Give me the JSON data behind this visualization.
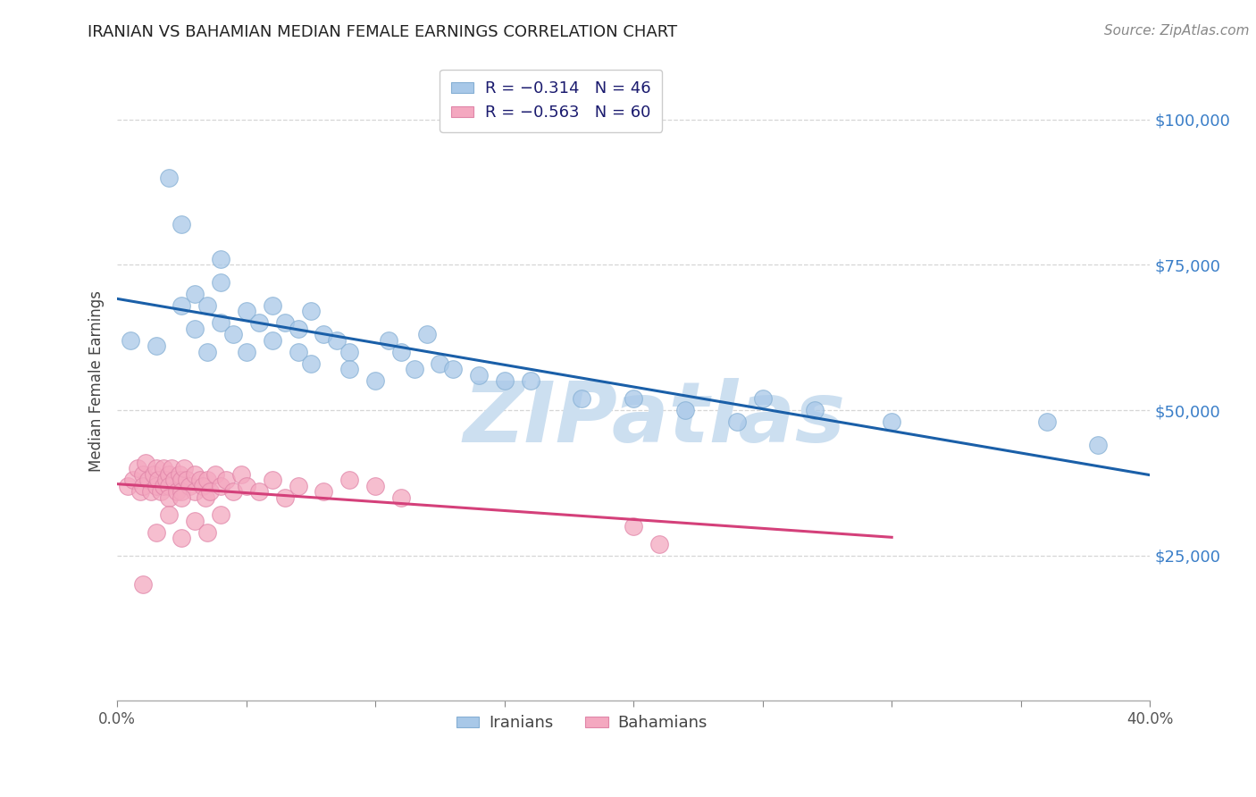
{
  "title": "IRANIAN VS BAHAMIAN MEDIAN FEMALE EARNINGS CORRELATION CHART",
  "source": "Source: ZipAtlas.com",
  "ylabel": "Median Female Earnings",
  "xlim": [
    0.0,
    0.4
  ],
  "ylim": [
    0,
    110000
  ],
  "yticks": [
    25000,
    50000,
    75000,
    100000
  ],
  "ytick_labels": [
    "$25,000",
    "$50,000",
    "$75,000",
    "$100,000"
  ],
  "xticks": [
    0.0,
    0.05,
    0.1,
    0.15,
    0.2,
    0.25,
    0.3,
    0.35,
    0.4
  ],
  "xtick_labels": [
    "0.0%",
    "",
    "",
    "",
    "",
    "",
    "",
    "",
    "40.0%"
  ],
  "background_color": "#ffffff",
  "grid_color": "#cccccc",
  "iranian_color": "#a8c8e8",
  "iranian_edge_color": "#85afd4",
  "bahamian_color": "#f4a8c0",
  "bahamian_edge_color": "#e085a8",
  "iranian_line_color": "#1a5fa8",
  "bahamian_line_color": "#d4407a",
  "watermark": "ZIPatlas",
  "watermark_color": "#ccdff0",
  "legend_iranian": "R = −0.314   N = 46",
  "legend_bahamian": "R = −0.563   N = 60",
  "legend_R_color": "#d44",
  "iranians_label": "Iranians",
  "bahamians_label": "Bahamians",
  "iranian_scatter_x": [
    0.005,
    0.015,
    0.02,
    0.025,
    0.025,
    0.03,
    0.03,
    0.035,
    0.035,
    0.04,
    0.04,
    0.04,
    0.045,
    0.05,
    0.05,
    0.055,
    0.06,
    0.06,
    0.065,
    0.07,
    0.07,
    0.075,
    0.075,
    0.08,
    0.085,
    0.09,
    0.09,
    0.1,
    0.105,
    0.11,
    0.115,
    0.12,
    0.125,
    0.13,
    0.14,
    0.15,
    0.16,
    0.18,
    0.2,
    0.22,
    0.24,
    0.25,
    0.27,
    0.3,
    0.36,
    0.38
  ],
  "iranian_scatter_y": [
    62000,
    61000,
    90000,
    68000,
    82000,
    64000,
    70000,
    60000,
    68000,
    76000,
    65000,
    72000,
    63000,
    67000,
    60000,
    65000,
    68000,
    62000,
    65000,
    64000,
    60000,
    67000,
    58000,
    63000,
    62000,
    60000,
    57000,
    55000,
    62000,
    60000,
    57000,
    63000,
    58000,
    57000,
    56000,
    55000,
    55000,
    52000,
    52000,
    50000,
    48000,
    52000,
    50000,
    48000,
    48000,
    44000
  ],
  "bahamian_scatter_x": [
    0.004,
    0.006,
    0.008,
    0.009,
    0.01,
    0.01,
    0.011,
    0.012,
    0.013,
    0.014,
    0.015,
    0.015,
    0.016,
    0.017,
    0.018,
    0.018,
    0.019,
    0.02,
    0.02,
    0.02,
    0.021,
    0.022,
    0.023,
    0.024,
    0.025,
    0.025,
    0.026,
    0.027,
    0.028,
    0.03,
    0.03,
    0.032,
    0.033,
    0.034,
    0.035,
    0.036,
    0.038,
    0.04,
    0.042,
    0.045,
    0.048,
    0.05,
    0.055,
    0.06,
    0.065,
    0.07,
    0.08,
    0.09,
    0.1,
    0.11,
    0.01,
    0.015,
    0.02,
    0.025,
    0.025,
    0.03,
    0.035,
    0.04,
    0.2,
    0.21
  ],
  "bahamian_scatter_y": [
    37000,
    38000,
    40000,
    36000,
    39000,
    37000,
    41000,
    38000,
    36000,
    39000,
    37000,
    40000,
    38000,
    36000,
    37000,
    40000,
    38000,
    39000,
    37000,
    35000,
    40000,
    38000,
    36000,
    39000,
    38000,
    36000,
    40000,
    38000,
    37000,
    39000,
    36000,
    38000,
    37000,
    35000,
    38000,
    36000,
    39000,
    37000,
    38000,
    36000,
    39000,
    37000,
    36000,
    38000,
    35000,
    37000,
    36000,
    38000,
    37000,
    35000,
    20000,
    29000,
    32000,
    35000,
    28000,
    31000,
    29000,
    32000,
    30000,
    27000
  ]
}
